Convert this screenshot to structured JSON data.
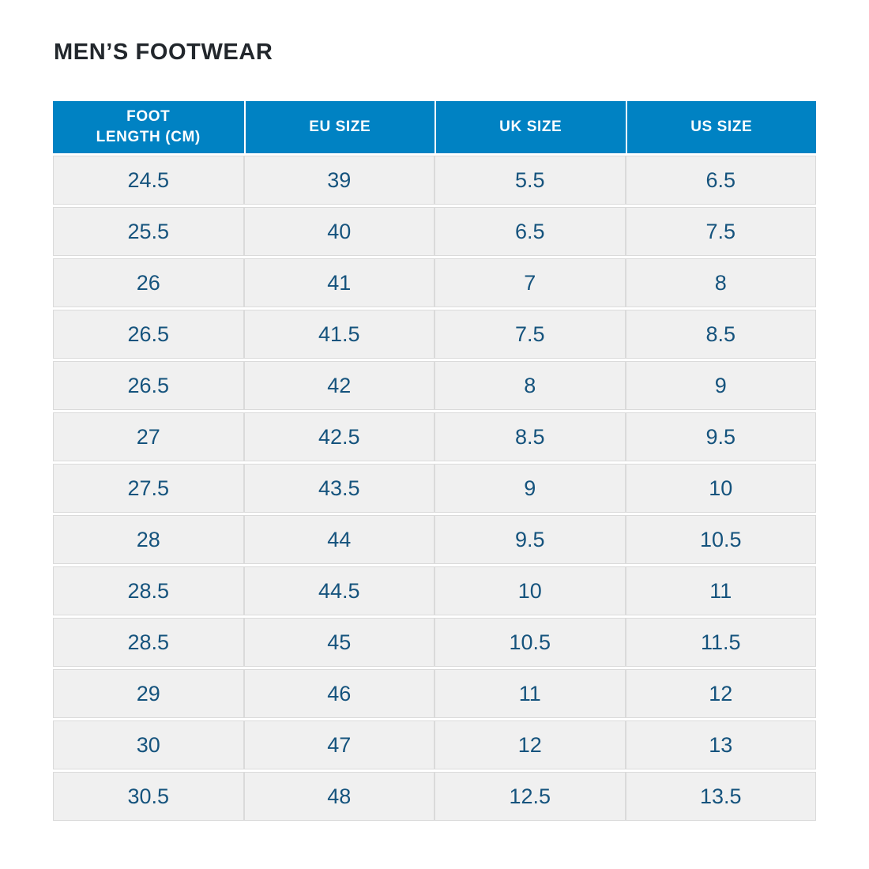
{
  "colors": {
    "header_background": "#0082c3",
    "header_text": "#ffffff",
    "cell_background": "#f0f0f0",
    "cell_text": "#15537d",
    "title_text": "#22272c",
    "grid_line": "#dadada"
  },
  "chart_data": {
    "type": "table",
    "title": "MEN’S FOOTWEAR",
    "columns": [
      "FOOT\nLENGTH (CM)",
      "EU SIZE",
      "UK SIZE",
      "US SIZE"
    ],
    "rows": [
      [
        "24.5",
        "39",
        "5.5",
        "6.5"
      ],
      [
        "25.5",
        "40",
        "6.5",
        "7.5"
      ],
      [
        "26",
        "41",
        "7",
        "8"
      ],
      [
        "26.5",
        "41.5",
        "7.5",
        "8.5"
      ],
      [
        "26.5",
        "42",
        "8",
        "9"
      ],
      [
        "27",
        "42.5",
        "8.5",
        "9.5"
      ],
      [
        "27.5",
        "43.5",
        "9",
        "10"
      ],
      [
        "28",
        "44",
        "9.5",
        "10.5"
      ],
      [
        "28.5",
        "44.5",
        "10",
        "11"
      ],
      [
        "28.5",
        "45",
        "10.5",
        "11.5"
      ],
      [
        "29",
        "46",
        "11",
        "12"
      ],
      [
        "30",
        "47",
        "12",
        "13"
      ],
      [
        "30.5",
        "48",
        "12.5",
        "13.5"
      ]
    ]
  }
}
